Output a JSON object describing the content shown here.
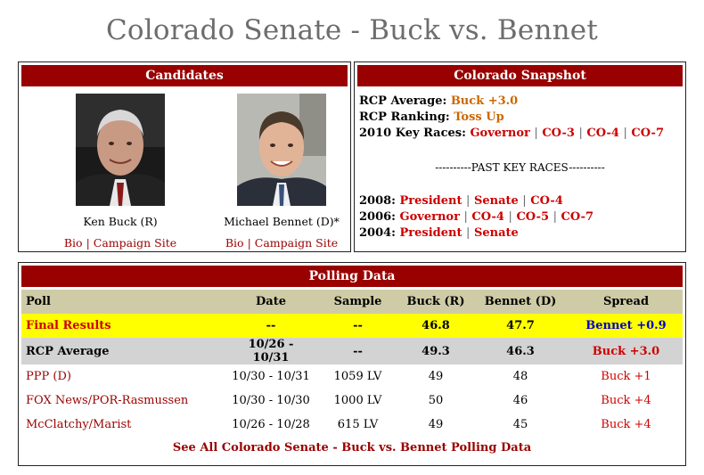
{
  "page": {
    "title": "Colorado Senate - Buck vs. Bennet"
  },
  "candidates": {
    "header": "Candidates",
    "items": [
      {
        "name": "Ken Buck (R)",
        "bio": "Bio",
        "separator": "|",
        "campaign": "Campaign Site"
      },
      {
        "name": "Michael Bennet (D)*",
        "bio": "Bio",
        "separator": "|",
        "campaign": "Campaign Site"
      }
    ]
  },
  "snapshot": {
    "header": "Colorado Snapshot",
    "rcp_average_label": "RCP Average:",
    "rcp_average_value": "Buck +3.0",
    "rcp_ranking_label": "RCP Ranking:",
    "rcp_ranking_value": "Toss Up",
    "key_races_label": "2010 Key Races:",
    "key_races": [
      "Governor",
      "CO-3",
      "CO-4",
      "CO-7"
    ],
    "past_label": "----------PAST KEY RACES----------",
    "past": [
      {
        "year": "2008:",
        "races": [
          "President",
          "Senate",
          "CO-4"
        ]
      },
      {
        "year": "2006:",
        "races": [
          "Governor",
          "CO-4",
          "CO-5",
          "CO-7"
        ]
      },
      {
        "year": "2004:",
        "races": [
          "President",
          "Senate"
        ]
      }
    ],
    "separator": "|"
  },
  "polling": {
    "header": "Polling Data",
    "columns": [
      "Poll",
      "Date",
      "Sample",
      "Buck (R)",
      "Bennet (D)",
      "Spread"
    ],
    "rows": [
      {
        "poll": "Final Results",
        "date": "--",
        "sample": "--",
        "buck": "46.8",
        "bennet": "47.7",
        "spread": "Bennet +0.9"
      },
      {
        "poll": "RCP Average",
        "date": "10/26 - 10/31",
        "sample": "--",
        "buck": "49.3",
        "bennet": "46.3",
        "spread": "Buck +3.0"
      },
      {
        "poll": "PPP (D)",
        "date": "10/30 - 10/31",
        "sample": "1059 LV",
        "buck": "49",
        "bennet": "48",
        "spread": "Buck +1"
      },
      {
        "poll": "FOX News/POR-Rasmussen",
        "date": "10/30 - 10/30",
        "sample": "1000 LV",
        "buck": "50",
        "bennet": "46",
        "spread": "Buck +4"
      },
      {
        "poll": "McClatchy/Marist",
        "date": "10/26 - 10/28",
        "sample": "615 LV",
        "buck": "49",
        "bennet": "45",
        "spread": "Buck +4"
      }
    ],
    "see_all": "See All Colorado Senate - Buck vs. Bennet Polling Data"
  },
  "colors": {
    "header_bg": "#990000",
    "link": "#990000",
    "orange": "#cc6600",
    "final_bg": "#ffff00",
    "rcp_bg": "#d3d3d3",
    "colhead_bg": "#cfcba6"
  }
}
